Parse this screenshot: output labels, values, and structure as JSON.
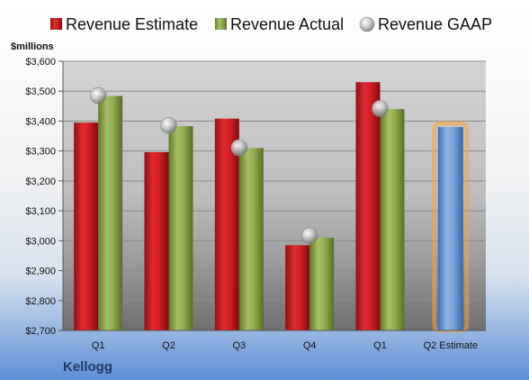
{
  "chart_data": {
    "type": "bar",
    "company": "Kellogg",
    "units": "$millions",
    "categories": [
      "Q1",
      "Q2",
      "Q3",
      "Q4",
      "Q1",
      "Q2 Estimate"
    ],
    "ylim": [
      2700,
      3600
    ],
    "yticks": [
      2700,
      2800,
      2900,
      3000,
      3100,
      3200,
      3300,
      3400,
      3500,
      3600
    ],
    "ytick_labels": [
      "$2,700",
      "$2,800",
      "$2,900",
      "$3,000",
      "$3,100",
      "$3,200",
      "$3,300",
      "$3,400",
      "$3,500",
      "$3,600"
    ],
    "grid": true,
    "legend": "top",
    "series": [
      {
        "name": "Revenue Estimate",
        "kind": "bar",
        "color": "#c8151d",
        "values": [
          3395,
          3296,
          3408,
          2985,
          3530,
          null
        ]
      },
      {
        "name": "Revenue Actual",
        "kind": "bar",
        "color": "#8aa447",
        "values": [
          3484,
          3383,
          3310,
          3010,
          3440,
          null
        ]
      },
      {
        "name": "Revenue GAAP",
        "kind": "marker",
        "color": "#b8b8b8",
        "values": [
          3485,
          3385,
          3311,
          3017,
          3442,
          null
        ]
      }
    ],
    "forecast": {
      "category": "Q2 Estimate",
      "value": 3380,
      "color": "#6f9ad6",
      "glow": "#f5a43a"
    }
  }
}
